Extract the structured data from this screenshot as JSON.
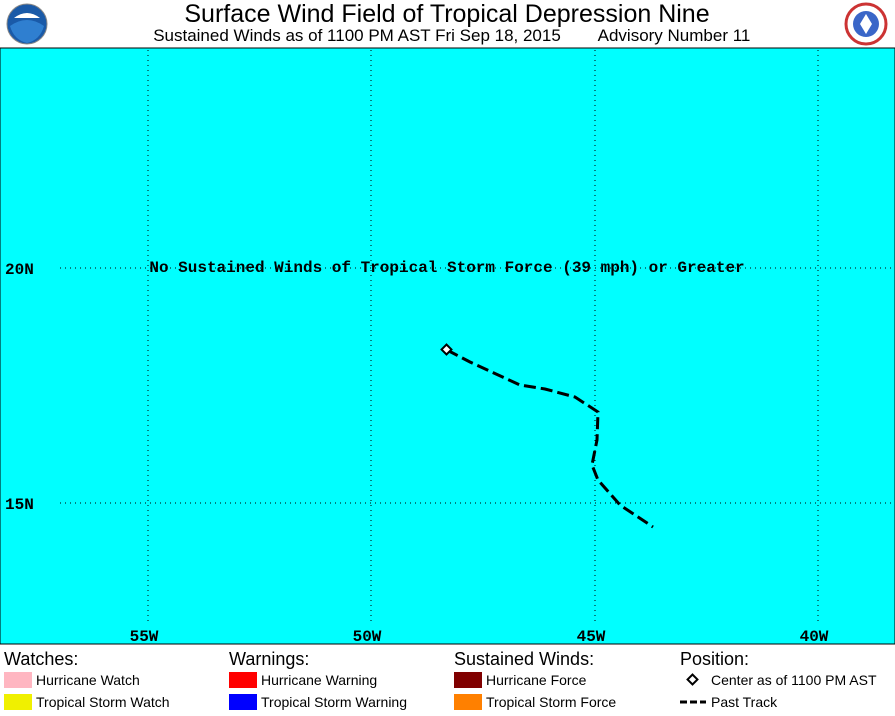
{
  "header": {
    "title": "Surface Wind Field of Tropical Depression Nine",
    "subtitle": "Sustained Winds as of 1100 PM AST Fri Sep 18, 2015",
    "advisory": "Advisory Number 11"
  },
  "map": {
    "message": "No Sustained Winds of Tropical Storm Force (39 mph) or Greater",
    "lat_labels": [
      "20N",
      "15N"
    ],
    "lon_labels": [
      "55W",
      "50W",
      "45W",
      "40W"
    ]
  },
  "legend": [
    {
      "heading": "Watches:",
      "items": [
        "Hurricane Watch",
        "Tropical Storm Watch"
      ]
    },
    {
      "heading": "Warnings:",
      "items": [
        "Hurricane Warning",
        "Tropical Storm Warning"
      ]
    },
    {
      "heading": "Sustained Winds:",
      "items": [
        "Hurricane Force",
        "Tropical Storm Force"
      ]
    },
    {
      "heading": "Position:",
      "items": [
        "Center as of 1100 PM AST",
        "Past Track"
      ]
    }
  ]
}
